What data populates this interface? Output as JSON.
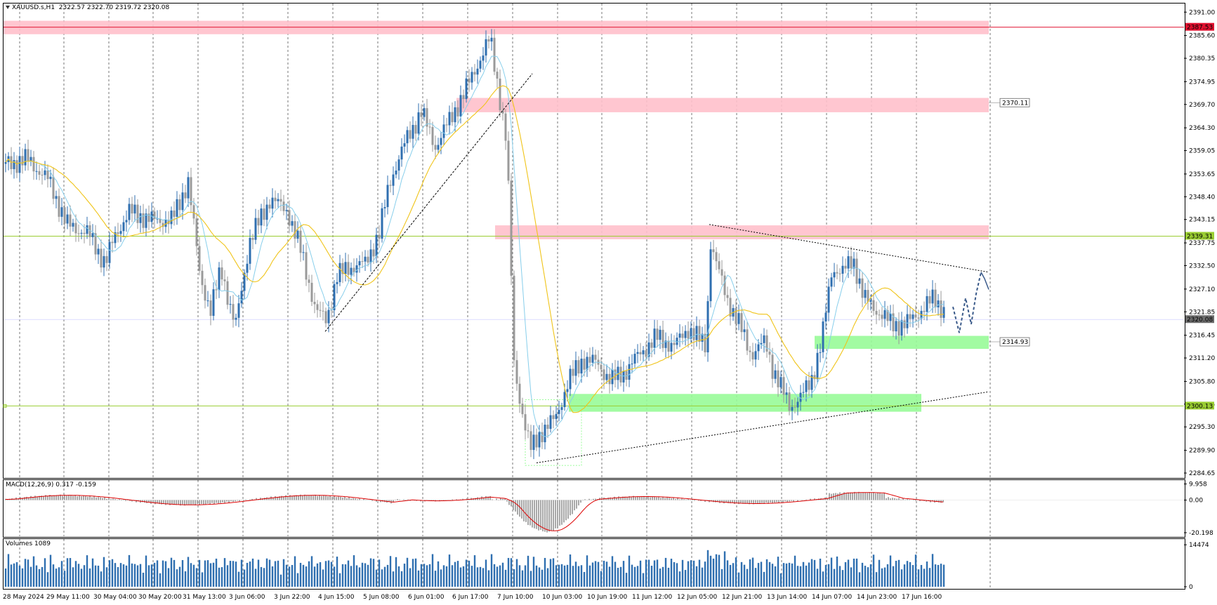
{
  "window": {
    "symbol_label": "XAUUSD.s,H1",
    "ohlc": "2322.57 2322.70 2319.72 2320.08",
    "dropdown_icon": "triangle-down-icon"
  },
  "price_axis": {
    "ticks": [
      "2391.00",
      "2385.60",
      "2380.35",
      "2374.95",
      "2369.70",
      "2364.30",
      "2359.05",
      "2353.65",
      "2348.40",
      "2343.15",
      "2337.75",
      "2332.50",
      "2327.10",
      "2321.85",
      "2316.45",
      "2311.20",
      "2305.80",
      "2300.55",
      "2295.30",
      "2289.90",
      "2284.65"
    ],
    "tick_values": [
      2391.0,
      2385.6,
      2380.35,
      2374.95,
      2369.7,
      2364.3,
      2359.05,
      2353.65,
      2348.4,
      2343.15,
      2337.75,
      2332.5,
      2327.1,
      2321.85,
      2316.45,
      2311.2,
      2305.8,
      2300.55,
      2295.3,
      2289.9,
      2284.65
    ],
    "range": [
      2284.0,
      2392.5
    ],
    "markers": [
      {
        "label": "2387.53",
        "value": 2387.53,
        "color": "#e0102f"
      },
      {
        "label": "2339.31",
        "value": 2339.31,
        "color": "#9acd32"
      },
      {
        "label": "2320.08",
        "value": 2320.08,
        "color": "#6b6b6b"
      },
      {
        "label": "2300.13",
        "value": 2300.13,
        "color": "#9acd32"
      }
    ]
  },
  "levels": [
    {
      "label": "2370.11",
      "value": 2370.11
    },
    {
      "label": "2314.93",
      "value": 2314.93
    }
  ],
  "time_axis": {
    "labels": [
      "28 May 2024",
      "29 May 11:00",
      "30 May 04:00",
      "30 May 20:00",
      "31 May 13:00",
      "3 Jun 06:00",
      "3 Jun 22:00",
      "4 Jun 15:00",
      "5 Jun 08:00",
      "6 Jun 01:00",
      "6 Jun 17:00",
      "7 Jun 10:00",
      "10 Jun 03:00",
      "10 Jun 19:00",
      "11 Jun 12:00",
      "12 Jun 05:00",
      "12 Jun 21:00",
      "13 Jun 14:00",
      "14 Jun 07:00",
      "14 Jun 23:00",
      "17 Jun 16:00"
    ]
  },
  "macd": {
    "label": "MACD(12,26,9) 0.317 -0.159",
    "ticks": [
      "9.958",
      "0.00",
      "-20.198"
    ],
    "tick_values": [
      9.958,
      0.0,
      -20.198
    ],
    "range": [
      -21.5,
      11.5
    ]
  },
  "volumes": {
    "label": "Volumes 1089",
    "ticks": [
      "14474",
      "0"
    ],
    "tick_values": [
      14474,
      0
    ],
    "range": [
      0,
      15500
    ]
  },
  "colors": {
    "bull": "#2f6fb0",
    "bear": "#9a9a9a",
    "ma_fast": "#87ceeb",
    "ma_slow": "#f0c419",
    "zone_red": "#ffc0cb",
    "zone_green": "#98fb98",
    "level_green": "#9acd32",
    "level_red": "#e0102f",
    "macd_signal": "#dd0000",
    "macd_hist": "#a8a8a8",
    "volume": "#2f6fb0"
  }
}
